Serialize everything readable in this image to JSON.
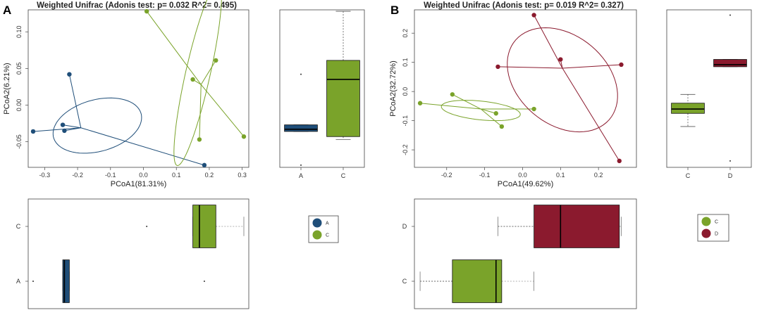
{
  "chart_data": [
    {
      "panel": "A",
      "type": "scatter",
      "title": "Weighted Unifrac (Adonis test: p= 0.032  R^2= 0.495)",
      "xlabel": "PCoA1(81.31%)",
      "ylabel": "PCoA2(6.21%)",
      "xlim": [
        -0.35,
        0.32
      ],
      "ylim": [
        -0.085,
        0.13
      ],
      "xticks": [
        -0.3,
        -0.2,
        -0.1,
        0.0,
        0.1,
        0.2,
        0.3
      ],
      "xtick_labels": [
        "-0.3",
        "-0.2",
        "-0.1",
        "0.0",
        "0.1",
        "0.2",
        "0.3"
      ],
      "yticks": [
        -0.05,
        0.0,
        0.05,
        0.1
      ],
      "ytick_labels": [
        "-0.05",
        "0.00",
        "0.05",
        "0.10"
      ],
      "series": [
        {
          "name": "A",
          "color": "#1f4e79",
          "points": [
            [
              -0.225,
              0.042
            ],
            [
              -0.245,
              -0.027
            ],
            [
              -0.24,
              -0.035
            ],
            [
              -0.335,
              -0.036
            ],
            [
              0.185,
              -0.082
            ]
          ],
          "centroid": [
            -0.19,
            -0.031
          ],
          "ellipse": {
            "cx": -0.14,
            "cy": -0.028,
            "rx": 0.135,
            "ry": 0.036,
            "angle_deg": 5
          }
        },
        {
          "name": "C",
          "color": "#7aa32a",
          "points": [
            [
              0.01,
              0.128
            ],
            [
              0.22,
              0.061
            ],
            [
              0.15,
              0.035
            ],
            [
              0.17,
              -0.047
            ],
            [
              0.305,
              -0.043
            ]
          ],
          "centroid": [
            0.175,
            0.028
          ],
          "ellipse": {
            "cx": 0.165,
            "cy": 0.042,
            "rx": 0.14,
            "ry": 0.034,
            "angle_deg": 62
          }
        }
      ],
      "boxplot_y": {
        "axis": "PCoA2",
        "categories": [
          "A",
          "C"
        ],
        "boxes": [
          {
            "group": "A",
            "color": "#1f4e79",
            "whisker_low": -0.036,
            "q1": -0.036,
            "median": -0.033,
            "q3": -0.027,
            "whisker_high": -0.027,
            "outliers": [
              0.042,
              -0.082
            ]
          },
          {
            "group": "C",
            "color": "#7aa32a",
            "whisker_low": -0.047,
            "q1": -0.043,
            "median": 0.035,
            "q3": 0.061,
            "whisker_high": 0.128,
            "outliers": []
          }
        ]
      },
      "boxplot_x": {
        "axis": "PCoA1",
        "categories": [
          "A",
          "C"
        ],
        "boxes": [
          {
            "group": "A",
            "color": "#1f4e79",
            "whisker_low": -0.245,
            "q1": -0.245,
            "median": -0.24,
            "q3": -0.225,
            "whisker_high": -0.225,
            "outliers": [
              -0.335,
              0.185
            ]
          },
          {
            "group": "C",
            "color": "#7aa32a",
            "whisker_low": 0.15,
            "q1": 0.15,
            "median": 0.17,
            "q3": 0.22,
            "whisker_high": 0.305,
            "outliers": [
              0.01
            ]
          }
        ]
      },
      "legend": {
        "position": "right",
        "entries": [
          {
            "label": "A",
            "color": "#1f4e79"
          },
          {
            "label": "C",
            "color": "#7aa32a"
          }
        ]
      }
    },
    {
      "panel": "B",
      "type": "scatter",
      "title": "Weighted Unifrac (Adonis test: p= 0.019  R^2= 0.327)",
      "xlabel": "PCoA1(49.62%)",
      "ylabel": "PCoA2(32.72%)",
      "xlim": [
        -0.285,
        0.3
      ],
      "ylim": [
        -0.26,
        0.28
      ],
      "xticks": [
        -0.2,
        -0.1,
        0.0,
        0.1,
        0.2
      ],
      "xtick_labels": [
        "-0.2",
        "-0.1",
        "0.0",
        "0.1",
        "0.2"
      ],
      "yticks": [
        -0.2,
        -0.1,
        0.0,
        0.1,
        0.2
      ],
      "ytick_labels": [
        "-0.2",
        "-0.1",
        "0.0",
        "0.1",
        "0.2"
      ],
      "series": [
        {
          "name": "C",
          "color": "#7aa32a",
          "points": [
            [
              -0.27,
              -0.04
            ],
            [
              -0.185,
              -0.01
            ],
            [
              -0.07,
              -0.075
            ],
            [
              -0.055,
              -0.12
            ],
            [
              0.03,
              -0.06
            ]
          ],
          "centroid": [
            -0.11,
            -0.06
          ],
          "ellipse": {
            "cx": -0.11,
            "cy": -0.065,
            "rx": 0.105,
            "ry": 0.032,
            "angle_deg": -8
          }
        },
        {
          "name": "D",
          "color": "#8b1a2e",
          "points": [
            [
              0.03,
              0.262
            ],
            [
              -0.065,
              0.085
            ],
            [
              0.1,
              0.11
            ],
            [
              0.26,
              0.092
            ],
            [
              0.255,
              -0.238
            ]
          ],
          "centroid": [
            0.105,
            0.08
          ],
          "ellipse": {
            "cx": 0.105,
            "cy": 0.04,
            "rx": 0.13,
            "ry": 0.19,
            "angle_deg": 28
          }
        }
      ],
      "boxplot_y": {
        "axis": "PCoA2",
        "categories": [
          "C",
          "D"
        ],
        "boxes": [
          {
            "group": "C",
            "color": "#7aa32a",
            "whisker_low": -0.12,
            "q1": -0.075,
            "median": -0.06,
            "q3": -0.04,
            "whisker_high": -0.01,
            "outliers": []
          },
          {
            "group": "D",
            "color": "#8b1a2e",
            "whisker_low": 0.085,
            "q1": 0.085,
            "median": 0.092,
            "q3": 0.11,
            "whisker_high": 0.11,
            "outliers": [
              0.262,
              -0.238
            ]
          }
        ]
      },
      "boxplot_x": {
        "axis": "PCoA1",
        "categories": [
          "C",
          "D"
        ],
        "boxes": [
          {
            "group": "C",
            "color": "#7aa32a",
            "whisker_low": -0.27,
            "q1": -0.185,
            "median": -0.07,
            "q3": -0.055,
            "whisker_high": 0.03,
            "outliers": []
          },
          {
            "group": "D",
            "color": "#8b1a2e",
            "whisker_low": -0.065,
            "q1": 0.03,
            "median": 0.1,
            "q3": 0.255,
            "whisker_high": 0.26,
            "outliers": []
          }
        ]
      },
      "legend": {
        "position": "right",
        "entries": [
          {
            "label": "C",
            "color": "#7aa32a"
          },
          {
            "label": "D",
            "color": "#8b1a2e"
          }
        ]
      }
    }
  ]
}
